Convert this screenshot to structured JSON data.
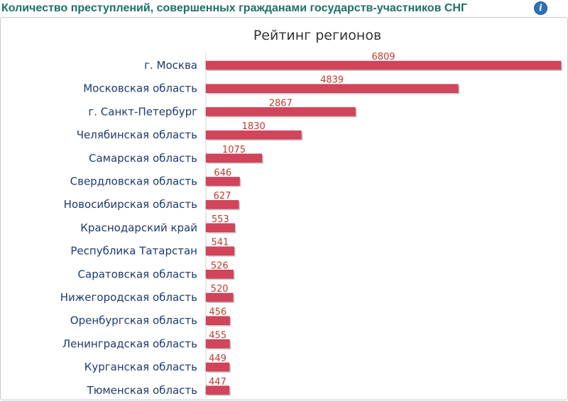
{
  "header": {
    "title": "Количество преступлений, совершенных гражданами государств-участников СНГ",
    "info_icon": "info-icon"
  },
  "colors": {
    "title": "#1e6f68",
    "bar": "#d2445a",
    "bar_shadow": "#c8c8c8",
    "category_label": "#1c3a6e",
    "value_label": "#c0392b",
    "axis": "#cfcfcf"
  },
  "chart_data": {
    "type": "bar",
    "orientation": "horizontal",
    "title": "Рейтинг регионов",
    "categories": [
      "г. Москва",
      "Московская область",
      "г. Санкт-Петербург",
      "Челябинская область",
      "Самарская область",
      "Свердловская область",
      "Новосибирская область",
      "Краснодарский край",
      "Республика Татарстан",
      "Саратовская область",
      "Нижегородская область",
      "Оренбургская область",
      "Ленинградская область",
      "Курганская область",
      "Тюменская область"
    ],
    "values": [
      6809,
      4839,
      2867,
      1830,
      1075,
      646,
      627,
      553,
      541,
      526,
      520,
      456,
      455,
      449,
      447
    ],
    "xlim": [
      0,
      6809
    ],
    "grid": false,
    "legend": "none"
  }
}
